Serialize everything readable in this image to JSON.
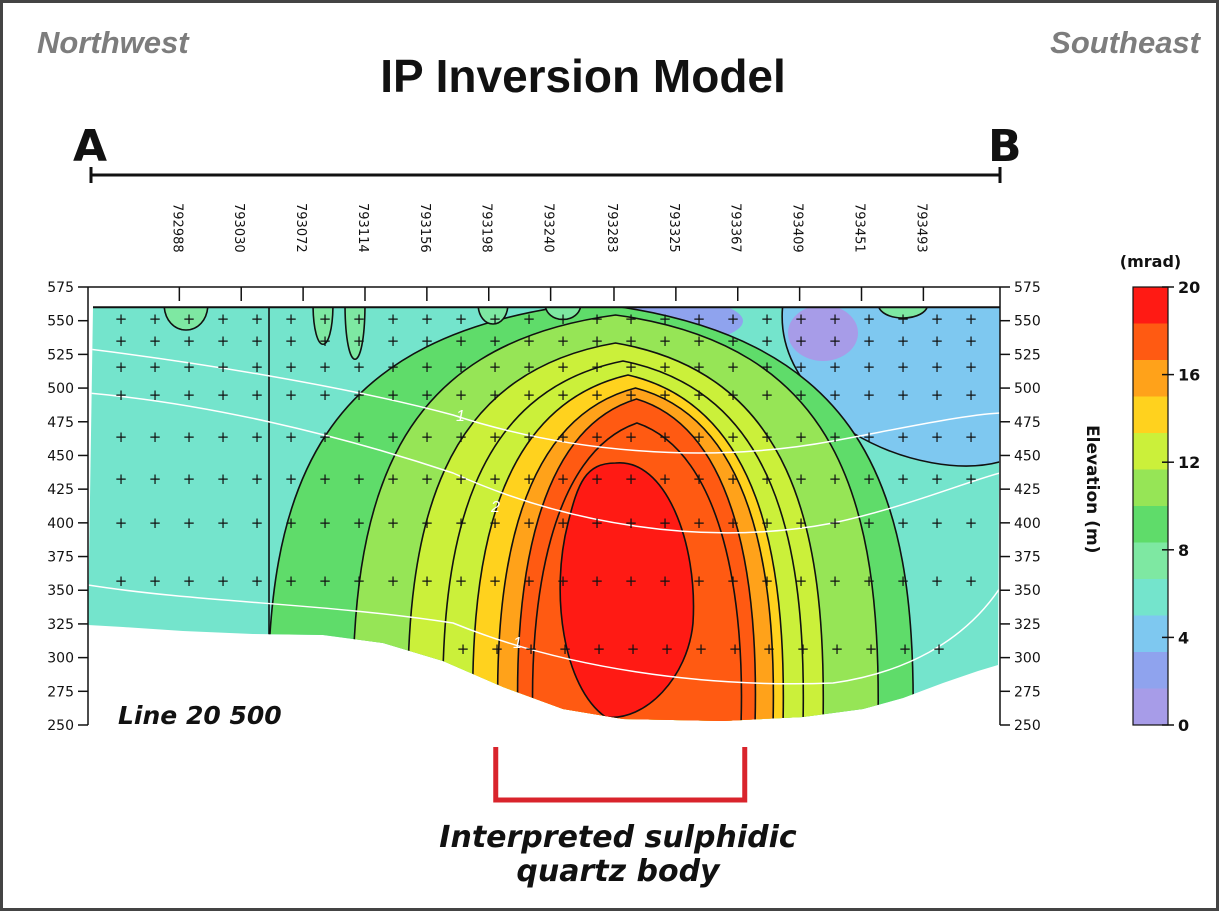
{
  "header": {
    "left_direction": "Northwest",
    "right_direction": "Southeast",
    "title": "IP Inversion Model",
    "profile_start": "A",
    "profile_end": "B"
  },
  "chart_data": {
    "type": "heatmap",
    "title": "IP Inversion Model",
    "line_label": "Line 20 500",
    "x_ticks": [
      "792988",
      "793030",
      "793072",
      "793114",
      "793156",
      "793198",
      "793240",
      "793283",
      "793325",
      "793367",
      "793409",
      "793451",
      "793493"
    ],
    "xlim": [
      792926,
      793545
    ],
    "ylabel": "Elevation (m)",
    "y_ticks": [
      250,
      275,
      300,
      325,
      350,
      375,
      400,
      425,
      450,
      475,
      500,
      525,
      550,
      575
    ],
    "ylim": [
      250,
      575
    ],
    "colorbar": {
      "label": "(mrad)",
      "ticks": [
        0,
        4,
        8,
        12,
        16,
        20
      ],
      "range": [
        0,
        20
      ],
      "colors": [
        "#a79ce8",
        "#8fa3ee",
        "#7ec8f0",
        "#74e4cc",
        "#7ee8a2",
        "#5fdc6a",
        "#96e556",
        "#cbf03a",
        "#ffd21e",
        "#ffa21a",
        "#ff5a12",
        "#ff1a14"
      ]
    },
    "contour_levels": [
      2,
      4,
      6,
      8,
      10,
      12,
      14,
      16,
      18
    ],
    "anomaly_peak_mrad": 20,
    "white_contour_labels": [
      "1",
      "2",
      "1"
    ],
    "ground_surface_elevation": 560,
    "interpretation": {
      "label_line1": "Interpreted sulphidic",
      "label_line2": "quartz body",
      "x_range": [
        793198,
        793367
      ],
      "color": "#d9242c"
    },
    "grid": false
  }
}
